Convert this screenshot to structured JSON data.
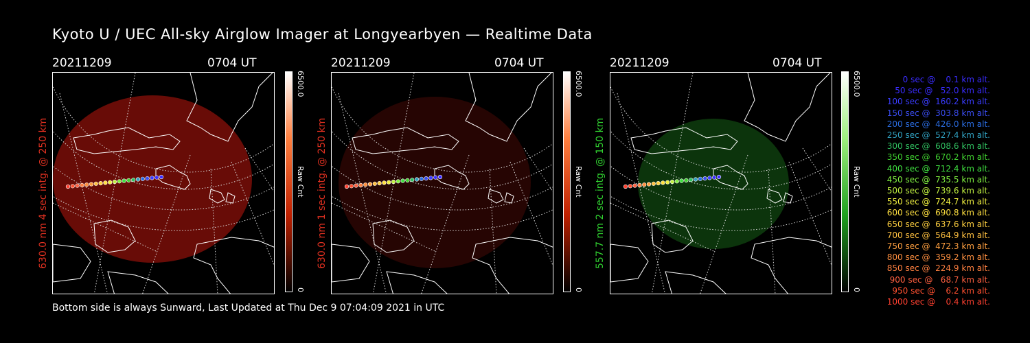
{
  "title": "Kyoto U / UEC All-sky Airglow Imager at Longyearbyen — Realtime Data",
  "footer": "Bottom side is always Sunward, Last Updated at Thu Dec  9 07:04:09 2021 in UTC",
  "panels": [
    {
      "date": "20211209",
      "time": "0704 UT",
      "ylabel": "630.0 nm 4 sec intg. @ 250 km",
      "ylabel_color": "#e03020",
      "cbar_max": "6500.0",
      "cbar_unit": "Raw Cnt",
      "cbar_min": "0",
      "cbar_color": "#ff3000"
    },
    {
      "date": "20211209",
      "time": "0704 UT",
      "ylabel": "630.0 nm 1 sec intg. @ 250 km",
      "ylabel_color": "#e03020",
      "cbar_max": "6500.0",
      "cbar_unit": "Raw Cnt",
      "cbar_min": "0",
      "cbar_color": "#ff3000"
    },
    {
      "date": "20211209",
      "time": "0704 UT",
      "ylabel": "557.7 nm 2 sec intg. @ 150 km",
      "ylabel_color": "#30d030",
      "cbar_max": "6500.0",
      "cbar_unit": "Raw Cnt",
      "cbar_min": "0",
      "cbar_color": "#40d040"
    }
  ],
  "legend": [
    {
      "text": "   0 sec @    0.1 km alt.",
      "color": "#3a2cff"
    },
    {
      "text": "  50 sec @   52.0 km alt.",
      "color": "#3a2cff"
    },
    {
      "text": " 100 sec @  160.2 km alt.",
      "color": "#3a3cff"
    },
    {
      "text": " 150 sec @  303.8 km alt.",
      "color": "#3a4cf0"
    },
    {
      "text": " 200 sec @  426.0 km alt.",
      "color": "#2a6ce0"
    },
    {
      "text": " 250 sec @  527.4 km alt.",
      "color": "#30a0c0"
    },
    {
      "text": " 300 sec @  608.6 km alt.",
      "color": "#30c060"
    },
    {
      "text": " 350 sec @  670.2 km alt.",
      "color": "#40d030"
    },
    {
      "text": " 400 sec @  712.4 km alt.",
      "color": "#40e040"
    },
    {
      "text": " 450 sec @  735.5 km alt.",
      "color": "#80f040"
    },
    {
      "text": " 500 sec @  739.6 km alt.",
      "color": "#c0f040"
    },
    {
      "text": " 550 sec @  724.7 km alt.",
      "color": "#f0f040"
    },
    {
      "text": " 600 sec @  690.8 km alt.",
      "color": "#ffe040"
    },
    {
      "text": " 650 sec @  637.6 km alt.",
      "color": "#ffd040"
    },
    {
      "text": " 700 sec @  564.9 km alt.",
      "color": "#ffc040"
    },
    {
      "text": " 750 sec @  472.3 km alt.",
      "color": "#ffa040"
    },
    {
      "text": " 800 sec @  359.2 km alt.",
      "color": "#ff9040"
    },
    {
      "text": " 850 sec @  224.9 km alt.",
      "color": "#ff8040"
    },
    {
      "text": " 900 sec @   68.7 km alt.",
      "color": "#ff6040"
    },
    {
      "text": " 950 sec @    6.2 km alt.",
      "color": "#ff5030"
    },
    {
      "text": "1000 sec @    0.4 km alt.",
      "color": "#ff4030"
    }
  ]
}
